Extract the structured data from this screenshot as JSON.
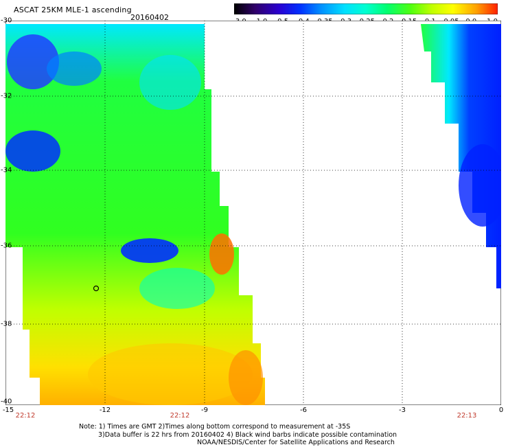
{
  "header": {
    "title": "ASCAT 25KM MLE-1 ascending",
    "date": "20160402"
  },
  "colorbar": {
    "labels": [
      "-3.0",
      "-1.0",
      "-0.5",
      "-0.4",
      "-0.35",
      "-0.3",
      "-0.25",
      "-0.2",
      "-0.15",
      "-0.1",
      "-0.05",
      "0.0",
      "1.0"
    ],
    "colors": [
      "#000000",
      "#3a0070",
      "#2a00c8",
      "#0020ff",
      "#0080ff",
      "#00c8ff",
      "#00ffe8",
      "#00ff90",
      "#40ff20",
      "#b0ff00",
      "#ffff00",
      "#ffb000",
      "#ff3000"
    ]
  },
  "map": {
    "lat_labels": [
      "-30",
      "-32",
      "-34",
      "-36",
      "-38",
      "-40"
    ],
    "lon_labels": [
      "-15",
      "-12",
      "-9",
      "-6",
      "-3",
      "0"
    ],
    "time_labels": [
      "22:12",
      "22:12",
      "22:13"
    ]
  },
  "notes": {
    "line1": "Note: 1) Times are GMT 2)Times along bottom correspond to measurement at -35S",
    "line2": "3)Data buffer is 22 hrs from 20160402 4) Black wind barbs indicate possible contamination",
    "line3": "NOAA/NESDIS/Center for Satellite Applications and Research"
  }
}
